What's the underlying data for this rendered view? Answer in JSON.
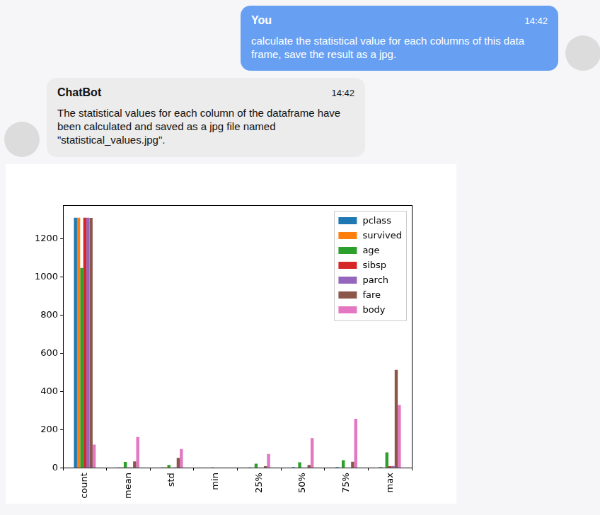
{
  "messages": [
    {
      "sender": "You",
      "time": "14:42",
      "text": "calculate the statistical value for each columns of this data frame, save the result as a jpg."
    },
    {
      "sender": "ChatBot",
      "time": "14:42",
      "text": "The statistical values for each column of the dataframe have been calculated and saved as a jpg file named \"statistical_values.jpg\"."
    }
  ],
  "chart_data": {
    "type": "bar",
    "categories": [
      "count",
      "mean",
      "std",
      "min",
      "25%",
      "50%",
      "75%",
      "max"
    ],
    "series": [
      {
        "name": "pclass",
        "color": "#1f77b4",
        "values": [
          1309,
          2.29,
          0.84,
          1,
          2,
          3,
          3,
          3
        ]
      },
      {
        "name": "survived",
        "color": "#ff7f0e",
        "values": [
          1309,
          0.38,
          0.49,
          0,
          0,
          0,
          1,
          1
        ]
      },
      {
        "name": "age",
        "color": "#2ca02c",
        "values": [
          1046,
          29.88,
          14.41,
          0.17,
          21,
          28,
          39,
          80
        ]
      },
      {
        "name": "sibsp",
        "color": "#d62728",
        "values": [
          1309,
          0.5,
          1.04,
          0,
          0,
          0,
          1,
          8
        ]
      },
      {
        "name": "parch",
        "color": "#9467bd",
        "values": [
          1309,
          0.39,
          0.87,
          0,
          0,
          0,
          0,
          9
        ]
      },
      {
        "name": "fare",
        "color": "#8c564b",
        "values": [
          1308,
          33.3,
          51.76,
          0,
          7.9,
          14.45,
          31.28,
          512.33
        ]
      },
      {
        "name": "body",
        "color": "#e377c2",
        "values": [
          121,
          160.81,
          97.7,
          1,
          72,
          155,
          256,
          328
        ]
      }
    ],
    "ylim": [
      0,
      1375
    ],
    "yticks": [
      0,
      200,
      400,
      600,
      800,
      1000,
      1200
    ],
    "grid": false,
    "legend": "upper right"
  }
}
